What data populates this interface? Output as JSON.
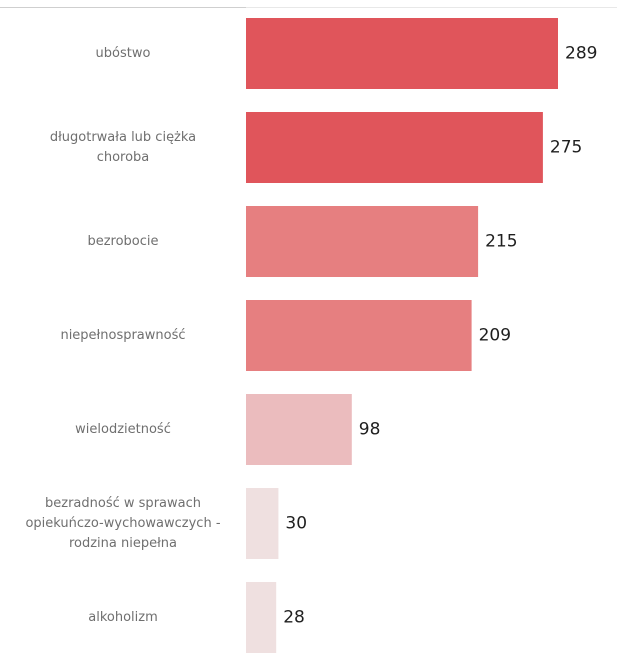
{
  "chart_data": {
    "type": "bar",
    "orientation": "horizontal",
    "categories": [
      [
        "ubóstwo"
      ],
      [
        "długotrwała lub ciężka",
        "choroba"
      ],
      [
        "bezrobocie"
      ],
      [
        "niepełnosprawność"
      ],
      [
        "wielodzietność"
      ],
      [
        "bezradność w sprawach",
        "opiekuńczo-wychowawczych -",
        "rodzina niepełna"
      ],
      [
        "alkoholizm"
      ]
    ],
    "values": [
      289,
      275,
      215,
      209,
      98,
      30,
      28
    ],
    "data_labels": [
      "289",
      "275",
      "215",
      "209",
      "98",
      "30",
      "28"
    ],
    "bar_colors": [
      "#e0555b",
      "#e0555b",
      "#e67f80",
      "#e67f80",
      "#ebbcbe",
      "#efe0e0",
      "#efe0e0"
    ],
    "label_color": "#6f6f6f",
    "value_color": "#1f1f1f",
    "axis_line_color": "#cfcfcf",
    "xlim": [
      0,
      289
    ],
    "grid": false,
    "title": "",
    "xlabel": "",
    "ylabel": ""
  }
}
